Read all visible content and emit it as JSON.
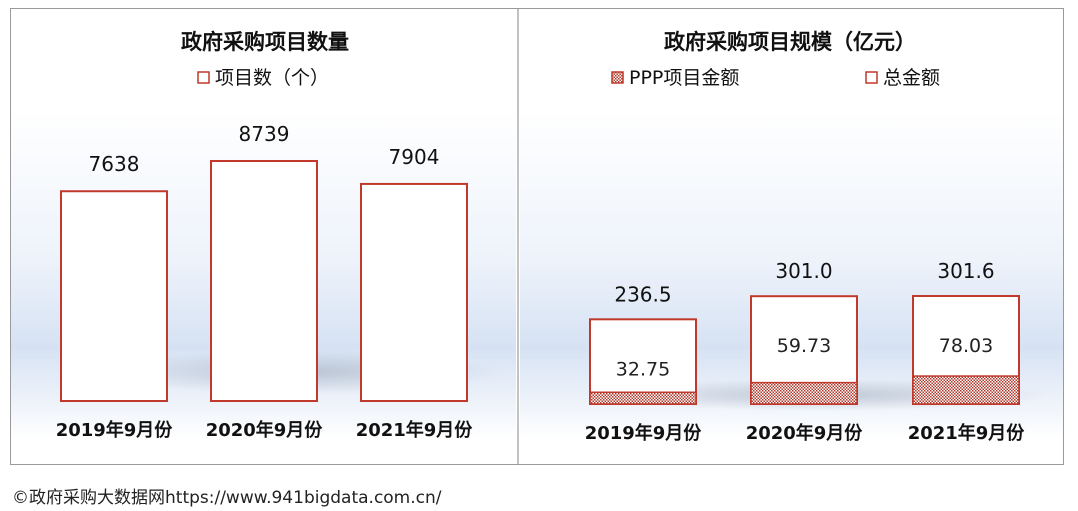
{
  "chart_data": [
    {
      "type": "bar",
      "title": "政府采购项目数量",
      "categories": [
        "2019年9月份",
        "2020年9月份",
        "2021年9月份"
      ],
      "series": [
        {
          "name": "项目数（个）",
          "values": [
            7638,
            8739,
            7904
          ]
        }
      ],
      "value_labels": [
        "7638",
        "8739",
        "7904"
      ],
      "legend_position": "top-center",
      "colors": {
        "bar_border": "#c0392b",
        "bar_fill": "#ffffff"
      },
      "grid": false
    },
    {
      "type": "bar",
      "title": "政府采购项目规模（亿元）",
      "categories": [
        "2019年9月份",
        "2020年9月份",
        "2021年9月份"
      ],
      "series": [
        {
          "name": "PPP项目金额",
          "values": [
            32.75,
            59.73,
            78.03
          ]
        },
        {
          "name": "总金额",
          "values": [
            236.5,
            301.0,
            301.6
          ]
        }
      ],
      "value_labels": {
        "PPP项目金额": [
          "32.75",
          "59.73",
          "78.03"
        ],
        "总金额": [
          "236.5",
          "301.0",
          "301.6"
        ]
      },
      "legend_position": "top-center",
      "colors": {
        "bar_border": "#c0392b",
        "ppp_pattern": "#c0392b",
        "bar_fill": "#ffffff"
      },
      "grid": false
    }
  ],
  "footer": {
    "text": "©政府采购大数据网https://www.941bigdata.com.cn/"
  }
}
